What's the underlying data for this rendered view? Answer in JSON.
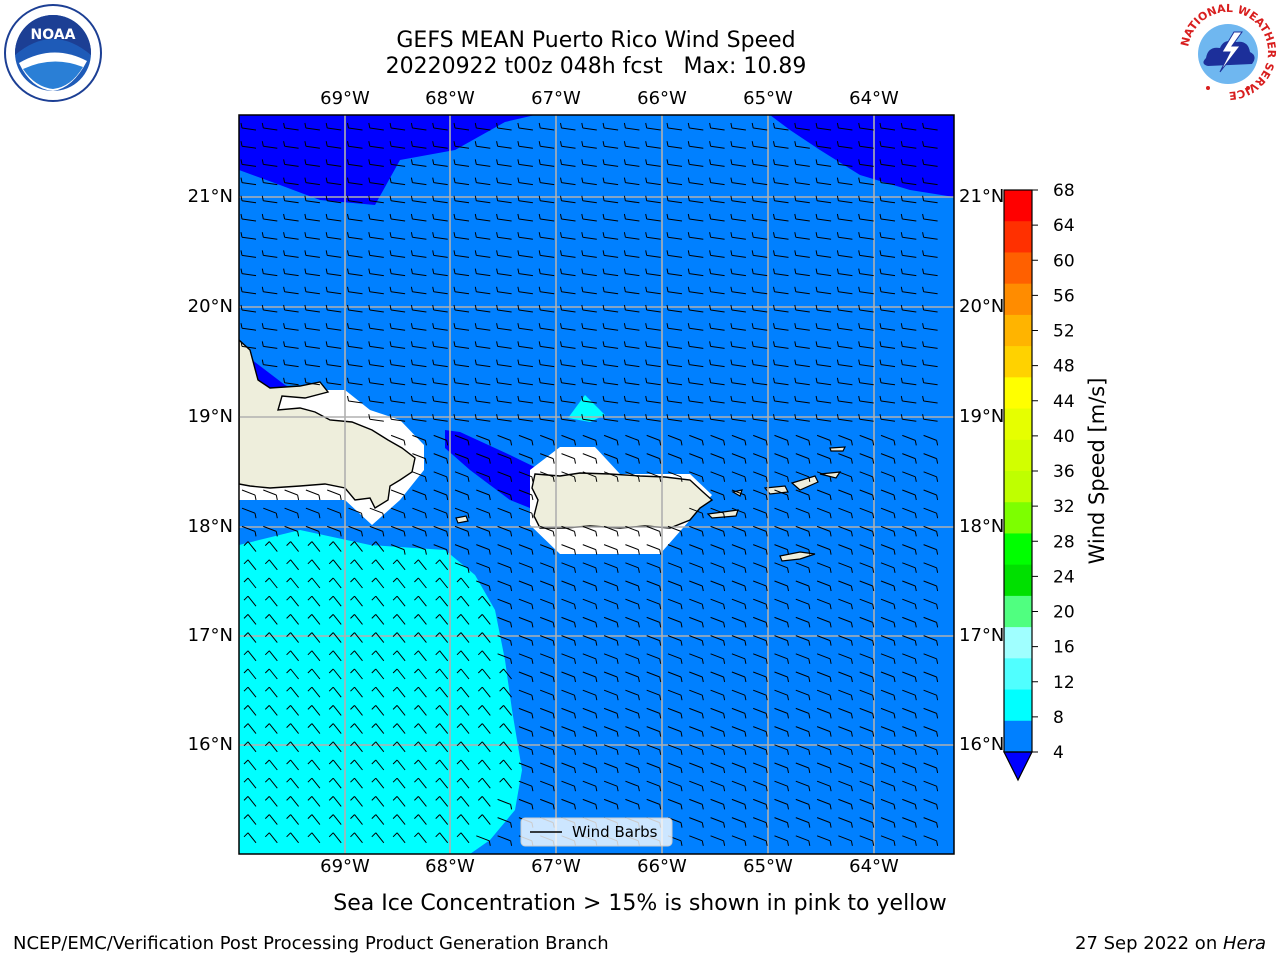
{
  "title": {
    "line1": "GEFS MEAN Puerto Rico Wind Speed",
    "line2": "20220922 t00z 048h fcst   Max: 10.89"
  },
  "axes": {
    "lon_labels": [
      "69°W",
      "68°W",
      "67°W",
      "66°W",
      "65°W",
      "64°W"
    ],
    "lat_labels": [
      "21°N",
      "20°N",
      "19°N",
      "18°N",
      "17°N",
      "16°N"
    ]
  },
  "legend": {
    "label": "Wind Barbs"
  },
  "colorbar": {
    "label": "Wind Speed [m/s]",
    "ticks": [
      "68",
      "64",
      "60",
      "56",
      "52",
      "48",
      "44",
      "40",
      "36",
      "32",
      "28",
      "24",
      "20",
      "16",
      "12",
      "8",
      "4"
    ],
    "colors": [
      "#ff0000",
      "#ff3000",
      "#ff6000",
      "#ff8c00",
      "#ffb400",
      "#ffd200",
      "#ffff00",
      "#e6ff00",
      "#d2ff00",
      "#bfff00",
      "#7dff00",
      "#00ff00",
      "#00e000",
      "#50ff80",
      "#a0ffff",
      "#50ffff",
      "#00ffff",
      "#0080ff"
    ],
    "extend_color": "#0000ff"
  },
  "map_colors": {
    "water_main": "#0080ff",
    "water_strong": "#0000ff",
    "water_light": "#00ffff",
    "land": "#eeeedc",
    "missing": "#ffffff"
  },
  "caption": "Sea Ice Concentration > 15% is shown in pink to yellow",
  "footer": {
    "left": "NCEP/EMC/Verification Post Processing Product Generation Branch",
    "right_prefix": "27 Sep 2022 on ",
    "right_host": "Hera"
  },
  "logos": {
    "noaa": "NOAA",
    "nws_ring": "NATIONAL WEATHER SERVICE"
  }
}
